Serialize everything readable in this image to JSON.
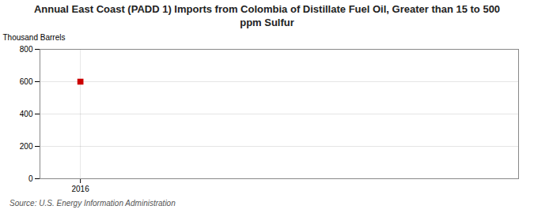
{
  "chart_data": {
    "type": "scatter",
    "title": "Annual East Coast (PADD 1) Imports from Colombia of Distillate Fuel Oil, Greater than 15 to 500\nppm Sulfur",
    "ylabel": "Thousand Barrels",
    "source": "Source: U.S. Energy Information Administration",
    "x": [
      2016
    ],
    "values": [
      600
    ],
    "color": "#cc0000",
    "marker": "square",
    "xlim": [
      2015.4,
      2022.5
    ],
    "xticks": [
      2016
    ],
    "ylim": [
      0,
      800
    ],
    "yticks": [
      0,
      200,
      400,
      600,
      800
    ],
    "grid": true
  }
}
